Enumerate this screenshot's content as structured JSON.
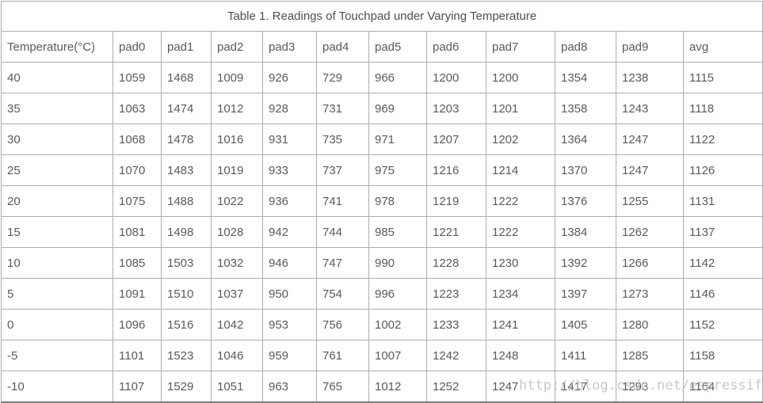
{
  "title": "Table 1. Readings of Touchpad under Varying Temperature",
  "watermark": "http://blog.csdn.net/espressif",
  "colors": {
    "background": "#ffffff",
    "cell_text": "#5a5a5a",
    "grid_border": "#acacac",
    "outer_bottom_border": "#7e7e7e",
    "watermark_text": "#b9b9b9"
  },
  "table": {
    "columns": [
      "Temperature(°C)",
      "pad0",
      "pad1",
      "pad2",
      "pad3",
      "pad4",
      "pad5",
      "pad6",
      "pad7",
      "pad8",
      "pad9",
      "avg"
    ],
    "rows": [
      [
        "40",
        "1059",
        "1468",
        "1009",
        "926",
        "729",
        "966",
        "1200",
        "1200",
        "1354",
        "1238",
        "1115"
      ],
      [
        "35",
        "1063",
        "1474",
        "1012",
        "928",
        "731",
        "969",
        "1203",
        "1201",
        "1358",
        "1243",
        "1118"
      ],
      [
        "30",
        "1068",
        "1478",
        "1016",
        "931",
        "735",
        "971",
        "1207",
        "1202",
        "1364",
        "1247",
        "1122"
      ],
      [
        "25",
        "1070",
        "1483",
        "1019",
        "933",
        "737",
        "975",
        "1216",
        "1214",
        "1370",
        "1247",
        "1126"
      ],
      [
        "20",
        "1075",
        "1488",
        "1022",
        "936",
        "741",
        "978",
        "1219",
        "1222",
        "1376",
        "1255",
        "1131"
      ],
      [
        "15",
        "1081",
        "1498",
        "1028",
        "942",
        "744",
        "985",
        "1221",
        "1222",
        "1384",
        "1262",
        "1137"
      ],
      [
        "10",
        "1085",
        "1503",
        "1032",
        "946",
        "747",
        "990",
        "1228",
        "1230",
        "1392",
        "1266",
        "1142"
      ],
      [
        "5",
        "1091",
        "1510",
        "1037",
        "950",
        "754",
        "996",
        "1223",
        "1234",
        "1397",
        "1273",
        "1146"
      ],
      [
        "0",
        "1096",
        "1516",
        "1042",
        "953",
        "756",
        "1002",
        "1233",
        "1241",
        "1405",
        "1280",
        "1152"
      ],
      [
        "-5",
        "1101",
        "1523",
        "1046",
        "959",
        "761",
        "1007",
        "1242",
        "1248",
        "1411",
        "1285",
        "1158"
      ],
      [
        "-10",
        "1107",
        "1529",
        "1051",
        "963",
        "765",
        "1012",
        "1252",
        "1247",
        "1417",
        "1293",
        "1164"
      ]
    ]
  }
}
